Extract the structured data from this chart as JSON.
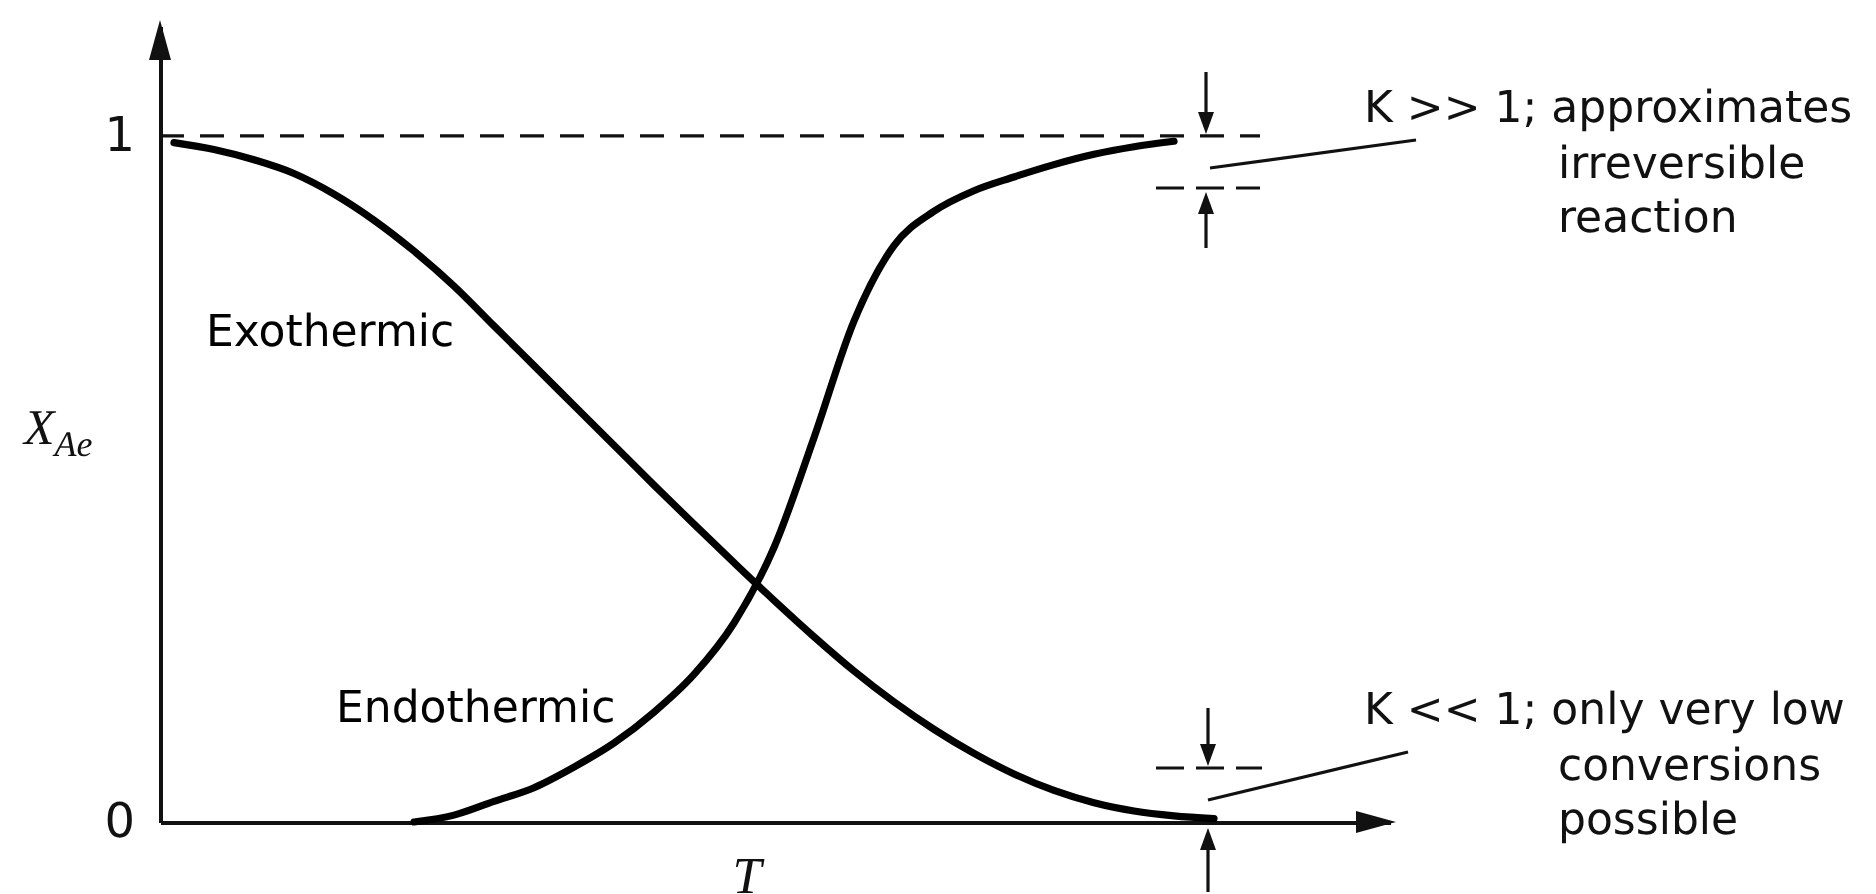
{
  "chart_data": {
    "type": "line",
    "xlabel": "T",
    "ylabel": "X$_{Ae}$",
    "categories": [
      null,
      null,
      null,
      null,
      null,
      null,
      null,
      null,
      null,
      null,
      null,
      null,
      null,
      null,
      null,
      null,
      null,
      null,
      null,
      null,
      null,
      null,
      null,
      null,
      null,
      null,
      null
    ],
    "series": [
      {
        "name": "Exothermic",
        "color": "#000000",
        "values": [
          0.99,
          0.98,
          0.965,
          0.945,
          0.915,
          0.877,
          0.832,
          0.781,
          0.723,
          0.665,
          0.607,
          0.549,
          0.491,
          0.434,
          0.378,
          0.323,
          0.27,
          0.22,
          0.175,
          0.135,
          0.1,
          0.07,
          0.046,
          0.028,
          0.016,
          0.009,
          0.005
        ]
      },
      {
        "name": "Endothermic",
        "color": "#000000",
        "values": [
          null,
          null,
          null,
          null,
          null,
          null,
          0,
          0.01,
          0.03,
          0.05,
          0.08,
          0.115,
          0.16,
          0.215,
          0.29,
          0.4,
          0.56,
          0.73,
          0.84,
          0.89,
          0.92,
          0.94,
          0.958,
          0.973,
          0.984,
          0.992,
          null
        ]
      }
    ],
    "ylim": [
      0,
      1.16
    ],
    "yticks": [
      0,
      1
    ],
    "tick_labels": "y",
    "ref_lines": [
      {
        "axis": "y",
        "value": 1,
        "line_style": "dashed"
      }
    ],
    "annotations": [
      "K >> 1; approximates irreversible reaction",
      "K << 1; only very low conversions possible"
    ]
  }
}
